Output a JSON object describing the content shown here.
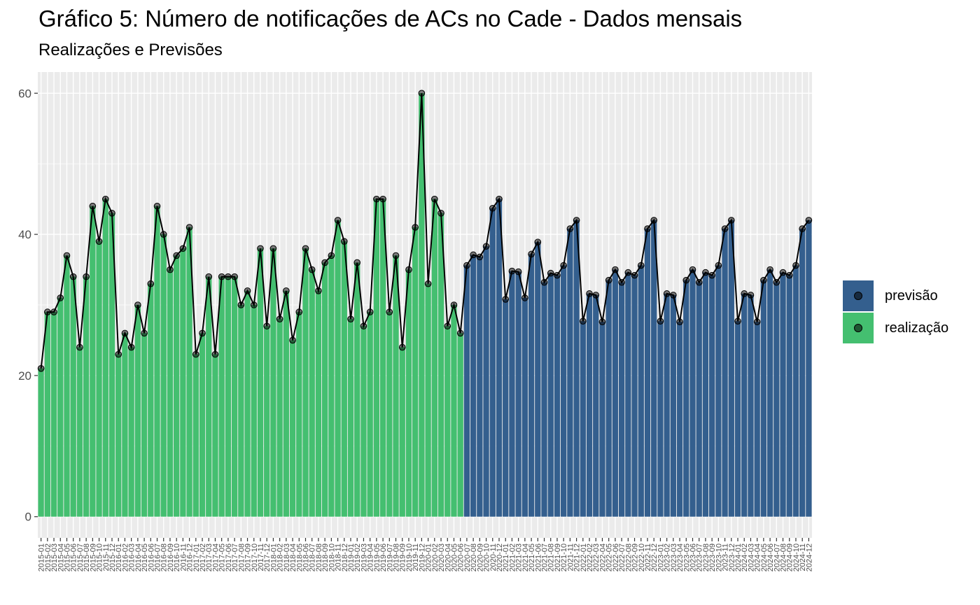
{
  "title": "Gráfico 5: Número de notificações de ACs no Cade - Dados mensais",
  "subtitle": "Realizações e Previsões",
  "colors": {
    "realizacao": "#44BF70",
    "previsao": "#345F8E",
    "panel": "#EBEBEB",
    "grid": "#FFFFFF",
    "line": "#000000",
    "tick_text": "#4D4D4D"
  },
  "legend": {
    "position": "right",
    "items": [
      {
        "label": "previsão",
        "color": "#345F8E"
      },
      {
        "label": "realização",
        "color": "#44BF70"
      }
    ]
  },
  "chart_data": {
    "type": "bar",
    "overlay": "line with points",
    "y_ticks": [
      0,
      20,
      40,
      60
    ],
    "ylim": [
      -3,
      63
    ],
    "grid": true,
    "x_start": "2015-01",
    "categories": [
      "2015-01",
      "2015-02",
      "2015-03",
      "2015-04",
      "2015-05",
      "2015-06",
      "2015-07",
      "2015-08",
      "2015-09",
      "2015-10",
      "2015-11",
      "2015-12",
      "2016-01",
      "2016-02",
      "2016-03",
      "2016-04",
      "2016-05",
      "2016-06",
      "2016-07",
      "2016-08",
      "2016-09",
      "2016-10",
      "2016-11",
      "2016-12",
      "2017-01",
      "2017-02",
      "2017-03",
      "2017-04",
      "2017-05",
      "2017-06",
      "2017-07",
      "2017-08",
      "2017-09",
      "2017-10",
      "2017-11",
      "2017-12",
      "2018-01",
      "2018-02",
      "2018-03",
      "2018-04",
      "2018-05",
      "2018-06",
      "2018-07",
      "2018-08",
      "2018-09",
      "2018-10",
      "2018-11",
      "2018-12",
      "2019-01",
      "2019-02",
      "2019-03",
      "2019-04",
      "2019-05",
      "2019-06",
      "2019-07",
      "2019-08",
      "2019-09",
      "2019-10",
      "2019-11",
      "2019-12",
      "2020-01",
      "2020-02",
      "2020-03",
      "2020-04",
      "2020-05",
      "2020-06",
      "2020-07",
      "2020-08",
      "2020-09",
      "2020-10",
      "2020-11",
      "2020-12",
      "2021-01",
      "2021-02",
      "2021-03",
      "2021-04",
      "2021-05",
      "2021-06",
      "2021-07",
      "2021-08",
      "2021-09",
      "2021-10",
      "2021-11",
      "2021-12",
      "2022-01",
      "2022-02",
      "2022-03",
      "2022-04",
      "2022-05",
      "2022-06",
      "2022-07",
      "2022-08",
      "2022-09",
      "2022-10",
      "2022-11",
      "2022-12",
      "2023-01",
      "2023-02",
      "2023-03",
      "2023-04",
      "2023-05",
      "2023-06",
      "2023-07",
      "2023-08",
      "2023-09",
      "2023-10",
      "2023-11",
      "2023-12",
      "2024-01",
      "2024-02",
      "2024-03",
      "2024-04",
      "2024-05",
      "2024-06",
      "2024-07",
      "2024-08",
      "2024-09",
      "2024-10",
      "2024-11",
      "2024-12"
    ],
    "values": [
      21,
      29,
      29,
      31,
      37,
      34,
      24,
      34,
      44,
      39,
      45,
      43,
      23,
      26,
      24,
      30,
      26,
      33,
      44,
      40,
      35,
      37,
      38,
      41,
      23,
      26,
      34,
      23,
      34,
      34,
      34,
      30,
      32,
      30,
      38,
      27,
      38,
      28,
      32,
      25,
      29,
      38,
      35,
      32,
      36,
      37,
      42,
      39,
      28,
      36,
      27,
      29,
      45,
      45,
      29,
      37,
      24,
      35,
      41,
      60,
      33,
      45,
      43,
      27,
      30,
      26,
      35.6,
      37.1,
      36.8,
      38.3,
      43.7,
      45,
      30.8,
      34.8,
      34.7,
      31,
      37.2,
      38.9,
      33.2,
      34.5,
      34.2,
      35.6,
      40.8,
      42,
      27.7,
      31.6,
      31.4,
      27.6,
      33.5,
      35,
      33.2,
      34.6,
      34.2,
      35.6,
      40.8,
      42,
      27.7,
      31.6,
      31.4,
      27.6,
      33.5,
      35,
      33.2,
      34.6,
      34.2,
      35.6,
      40.8,
      42,
      27.7,
      31.6,
      31.4,
      27.6,
      33.5,
      35,
      33.2,
      34.6,
      34.2,
      35.6,
      40.8,
      42
    ],
    "realizacao_until": "2020-06",
    "previsao_from": "2020-07",
    "series": [
      {
        "name": "realização",
        "from": "2015-01",
        "to": "2020-06"
      },
      {
        "name": "previsão",
        "from": "2020-07",
        "to": "2024-12"
      }
    ]
  }
}
